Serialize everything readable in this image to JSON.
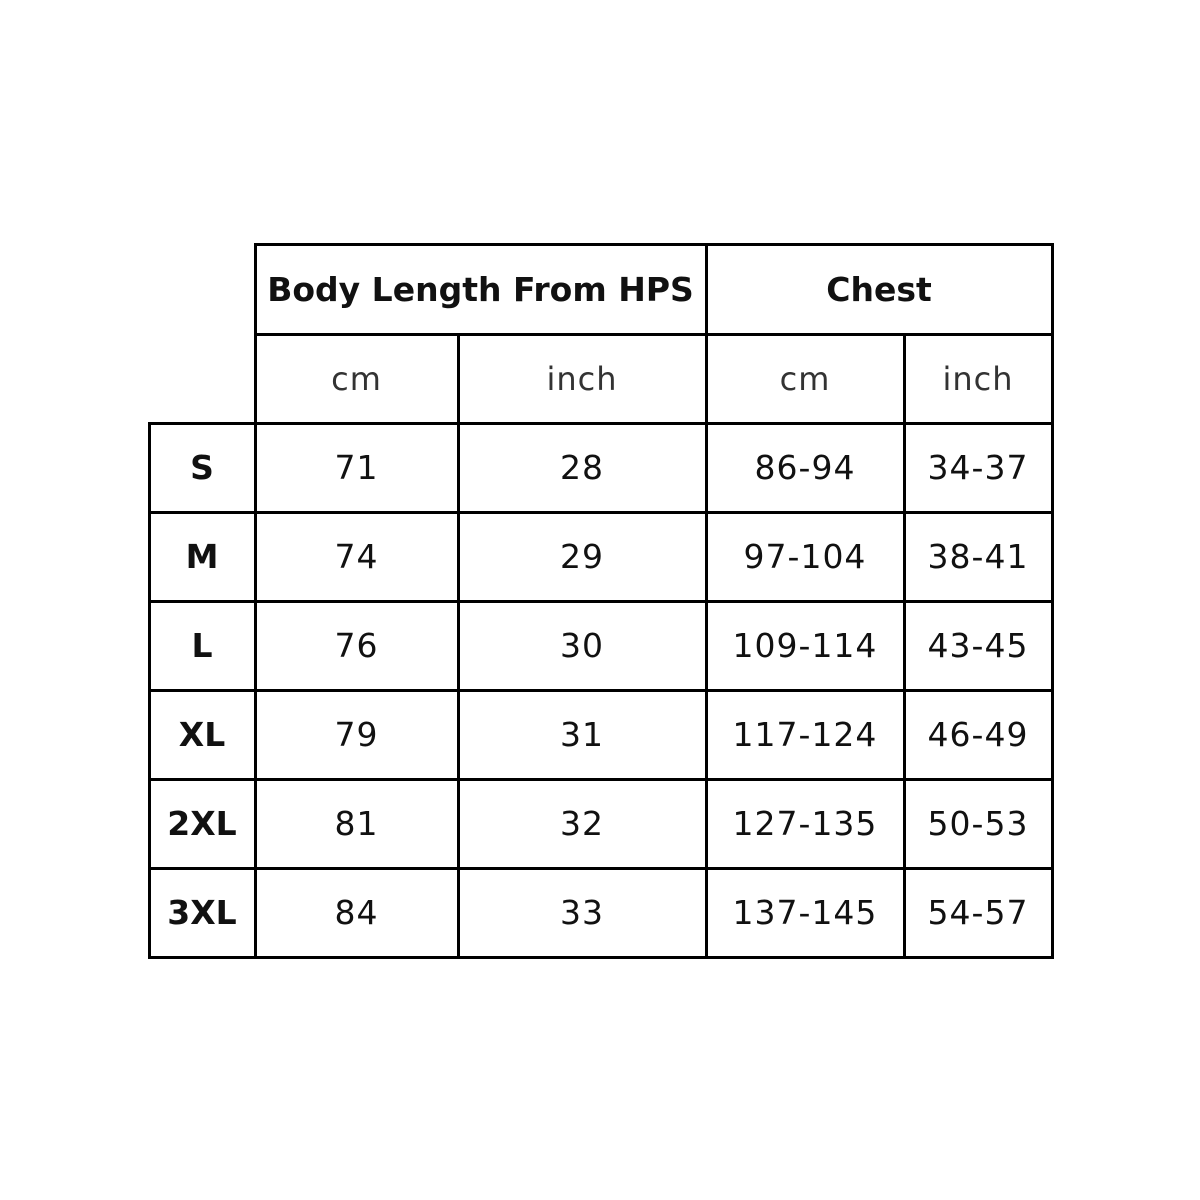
{
  "size_chart": {
    "group_headers": [
      "Body Length From HPS",
      "Chest"
    ],
    "unit_headers": [
      "cm",
      "inch",
      "cm",
      "inch"
    ],
    "rows": [
      {
        "size": "S",
        "values": [
          "71",
          "28",
          "86-94",
          "34-37"
        ]
      },
      {
        "size": "M",
        "values": [
          "74",
          "29",
          "97-104",
          "38-41"
        ]
      },
      {
        "size": "L",
        "values": [
          "76",
          "30",
          "109-114",
          "43-45"
        ]
      },
      {
        "size": "XL",
        "values": [
          "79",
          "31",
          "117-124",
          "46-49"
        ]
      },
      {
        "size": "2XL",
        "values": [
          "81",
          "32",
          "127-135",
          "50-53"
        ]
      },
      {
        "size": "3XL",
        "values": [
          "84",
          "33",
          "137-145",
          "54-57"
        ]
      }
    ]
  }
}
